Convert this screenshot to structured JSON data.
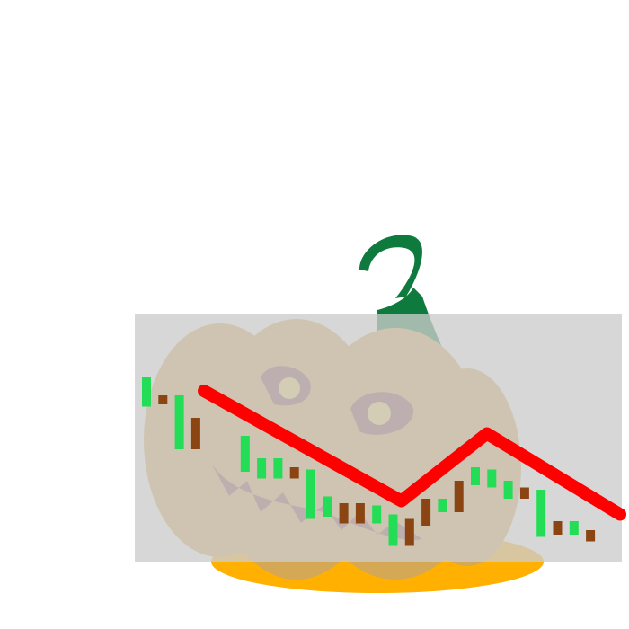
{
  "colors": {
    "background": "#ffffff",
    "panel": "#cccccc",
    "candle_up": "#22dd55",
    "candle_down": "#8b4513",
    "trend_line": "#ff0000",
    "pumpkin_body": "#d4a855",
    "pumpkin_bottom": "#ffb000",
    "pumpkin_stem": "#0f7a3e",
    "face_dark": "#8a4a4a",
    "eye_yellow": "#e8d060"
  },
  "illustration": {
    "icon": "jack-o-lantern-icon"
  },
  "chart_data": {
    "type": "candlestick",
    "title": "",
    "xlabel": "",
    "ylabel": "",
    "grid": false,
    "legend": "none",
    "ylim": [
      0,
      100
    ],
    "candles": [
      {
        "i": 1,
        "dir": "up",
        "open": 67,
        "close": 80
      },
      {
        "i": 2,
        "dir": "down",
        "open": 72,
        "close": 68
      },
      {
        "i": 3,
        "dir": "up",
        "open": 48,
        "close": 72
      },
      {
        "i": 4,
        "dir": "down",
        "open": 62,
        "close": 48
      },
      {
        "i": 7,
        "dir": "up",
        "open": 38,
        "close": 54
      },
      {
        "i": 8,
        "dir": "up",
        "open": 35,
        "close": 44
      },
      {
        "i": 9,
        "dir": "up",
        "open": 35,
        "close": 44
      },
      {
        "i": 10,
        "dir": "down",
        "open": 40,
        "close": 35
      },
      {
        "i": 11,
        "dir": "up",
        "open": 17,
        "close": 39
      },
      {
        "i": 12,
        "dir": "up",
        "open": 18,
        "close": 27
      },
      {
        "i": 13,
        "dir": "down",
        "open": 24,
        "close": 15
      },
      {
        "i": 14,
        "dir": "down",
        "open": 24,
        "close": 15
      },
      {
        "i": 15,
        "dir": "up",
        "open": 15,
        "close": 23
      },
      {
        "i": 16,
        "dir": "up",
        "open": 5,
        "close": 19
      },
      {
        "i": 17,
        "dir": "down",
        "open": 17,
        "close": 5
      },
      {
        "i": 18,
        "dir": "down",
        "open": 26,
        "close": 14
      },
      {
        "i": 19,
        "dir": "up",
        "open": 20,
        "close": 26
      },
      {
        "i": 20,
        "dir": "down",
        "open": 34,
        "close": 20
      },
      {
        "i": 21,
        "dir": "up",
        "open": 32,
        "close": 40
      },
      {
        "i": 22,
        "dir": "up",
        "open": 31,
        "close": 39
      },
      {
        "i": 23,
        "dir": "up",
        "open": 26,
        "close": 34
      },
      {
        "i": 24,
        "dir": "down",
        "open": 31,
        "close": 26
      },
      {
        "i": 25,
        "dir": "up",
        "open": 9,
        "close": 30
      },
      {
        "i": 26,
        "dir": "down",
        "open": 16,
        "close": 10
      },
      {
        "i": 27,
        "dir": "up",
        "open": 10,
        "close": 16
      },
      {
        "i": 28,
        "dir": "down",
        "open": 12,
        "close": 7
      }
    ],
    "trend_line": [
      {
        "i": 4.5,
        "value": 74
      },
      {
        "i": 16.5,
        "value": 25
      },
      {
        "i": 21.7,
        "value": 55
      },
      {
        "i": 29.8,
        "value": 19
      }
    ]
  }
}
